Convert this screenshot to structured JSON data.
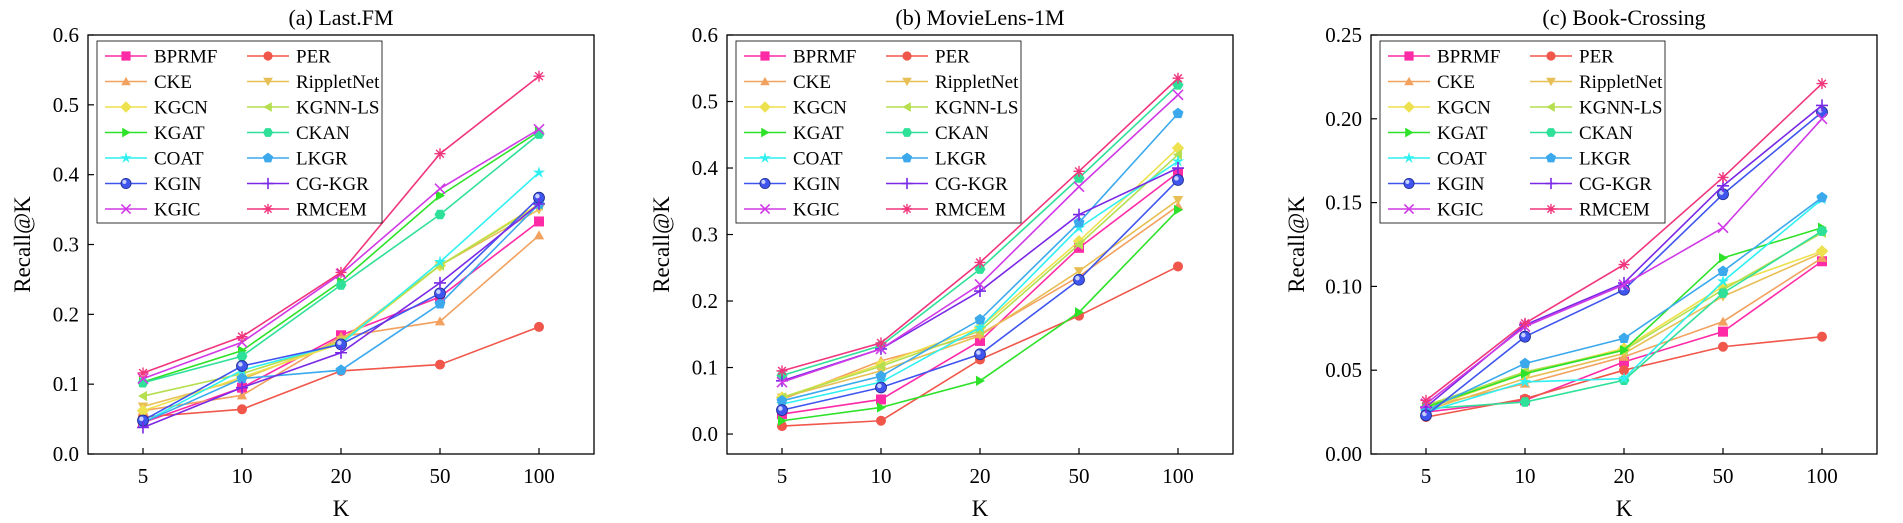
{
  "series_styles": [
    {
      "name": "BPRMF",
      "color": "#ff2aa6",
      "marker": "square"
    },
    {
      "name": "PER",
      "color": "#f0564a",
      "marker": "circle"
    },
    {
      "name": "CKE",
      "color": "#f2a15f",
      "marker": "triangle-up"
    },
    {
      "name": "RippletNet",
      "color": "#e8bf55",
      "marker": "triangle-down"
    },
    {
      "name": "KGCN",
      "color": "#eee14f",
      "marker": "diamond"
    },
    {
      "name": "KGNN-LS",
      "color": "#b5df4e",
      "marker": "triangle-left"
    },
    {
      "name": "KGAT",
      "color": "#2ee22a",
      "marker": "triangle-right"
    },
    {
      "name": "CKAN",
      "color": "#2fe099",
      "marker": "hexagon"
    },
    {
      "name": "COAT",
      "color": "#2ff0f0",
      "marker": "star"
    },
    {
      "name": "LKGR",
      "color": "#3ba9ec",
      "marker": "pentagon"
    },
    {
      "name": "KGIN",
      "color": "#3f55ee",
      "marker": "circle-lit"
    },
    {
      "name": "CG-KGR",
      "color": "#7a28e6",
      "marker": "plus"
    },
    {
      "name": "KGIC",
      "color": "#d03ae6",
      "marker": "x"
    },
    {
      "name": "RMCEM",
      "color": "#f0357d",
      "marker": "asterisk"
    }
  ],
  "chart_data": [
    {
      "type": "line",
      "title": "(a) Last.FM",
      "xlabel": "K",
      "ylabel": "Recall@K",
      "categories": [
        "5",
        "10",
        "20",
        "50",
        "100"
      ],
      "ylim": [
        0.0,
        0.6
      ],
      "yticks": [
        0.0,
        0.1,
        0.2,
        0.3,
        0.4,
        0.5,
        0.6
      ],
      "ytick_labels": [
        "0.0",
        "0.1",
        "0.2",
        "0.3",
        "0.4",
        "0.5",
        "0.6"
      ],
      "legend_position": "top-left",
      "series": [
        {
          "name": "BPRMF",
          "values": [
            0.045,
            0.095,
            0.17,
            0.225,
            0.333
          ]
        },
        {
          "name": "PER",
          "values": [
            0.053,
            0.064,
            0.119,
            0.128,
            0.182
          ]
        },
        {
          "name": "CKE",
          "values": [
            0.062,
            0.084,
            0.168,
            0.19,
            0.313
          ]
        },
        {
          "name": "RippletNet",
          "values": [
            0.068,
            0.107,
            0.163,
            0.27,
            0.35
          ]
        },
        {
          "name": "KGCN",
          "values": [
            0.062,
            0.11,
            0.158,
            0.27,
            0.358
          ]
        },
        {
          "name": "KGNN-LS",
          "values": [
            0.083,
            0.115,
            0.16,
            0.27,
            0.356
          ]
        },
        {
          "name": "KGAT",
          "values": [
            0.103,
            0.148,
            0.247,
            0.37,
            0.462
          ]
        },
        {
          "name": "CKAN",
          "values": [
            0.102,
            0.14,
            0.242,
            0.343,
            0.458
          ]
        },
        {
          "name": "COAT",
          "values": [
            0.045,
            0.12,
            0.158,
            0.275,
            0.403
          ]
        },
        {
          "name": "LKGR",
          "values": [
            0.045,
            0.108,
            0.12,
            0.215,
            0.358
          ]
        },
        {
          "name": "KGIN",
          "values": [
            0.048,
            0.126,
            0.157,
            0.23,
            0.367
          ]
        },
        {
          "name": "CG-KGR",
          "values": [
            0.038,
            0.095,
            0.145,
            0.245,
            0.358
          ]
        },
        {
          "name": "KGIC",
          "values": [
            0.108,
            0.16,
            0.258,
            0.38,
            0.465
          ]
        },
        {
          "name": "RMCEM",
          "values": [
            0.116,
            0.168,
            0.26,
            0.43,
            0.541
          ]
        }
      ]
    },
    {
      "type": "line",
      "title": "(b)  MovieLens-1M",
      "xlabel": "K",
      "ylabel": "Recall@K",
      "categories": [
        "5",
        "10",
        "20",
        "50",
        "100"
      ],
      "ylim": [
        -0.03,
        0.6
      ],
      "yticks": [
        0.0,
        0.1,
        0.2,
        0.3,
        0.4,
        0.5,
        0.6
      ],
      "ytick_labels": [
        "0.0",
        "0.1",
        "0.2",
        "0.3",
        "0.4",
        "0.5",
        "0.6"
      ],
      "legend_position": "top-left",
      "series": [
        {
          "name": "BPRMF",
          "values": [
            0.03,
            0.052,
            0.14,
            0.28,
            0.393
          ]
        },
        {
          "name": "PER",
          "values": [
            0.012,
            0.02,
            0.112,
            0.178,
            0.252
          ]
        },
        {
          "name": "CKE",
          "values": [
            0.052,
            0.11,
            0.15,
            0.237,
            0.343
          ]
        },
        {
          "name": "RippletNet",
          "values": [
            0.055,
            0.095,
            0.148,
            0.245,
            0.352
          ]
        },
        {
          "name": "KGCN",
          "values": [
            0.055,
            0.105,
            0.16,
            0.29,
            0.43
          ]
        },
        {
          "name": "KGNN-LS",
          "values": [
            0.055,
            0.102,
            0.155,
            0.285,
            0.42
          ]
        },
        {
          "name": "KGAT",
          "values": [
            0.02,
            0.04,
            0.08,
            0.183,
            0.337
          ]
        },
        {
          "name": "CKAN",
          "values": [
            0.088,
            0.133,
            0.248,
            0.385,
            0.525
          ]
        },
        {
          "name": "COAT",
          "values": [
            0.045,
            0.078,
            0.16,
            0.31,
            0.41
          ]
        },
        {
          "name": "LKGR",
          "values": [
            0.05,
            0.087,
            0.172,
            0.318,
            0.482
          ]
        },
        {
          "name": "KGIN",
          "values": [
            0.036,
            0.07,
            0.12,
            0.232,
            0.382
          ]
        },
        {
          "name": "CG-KGR",
          "values": [
            0.08,
            0.128,
            0.215,
            0.33,
            0.4
          ]
        },
        {
          "name": "KGIC",
          "values": [
            0.078,
            0.128,
            0.225,
            0.372,
            0.51
          ]
        },
        {
          "name": "RMCEM",
          "values": [
            0.095,
            0.137,
            0.258,
            0.395,
            0.535
          ]
        }
      ]
    },
    {
      "type": "line",
      "title": "(c) Book-Crossing",
      "xlabel": "K",
      "ylabel": "Recall@K",
      "categories": [
        "5",
        "10",
        "20",
        "50",
        "100"
      ],
      "ylim": [
        0.0,
        0.25
      ],
      "yticks": [
        0.0,
        0.05,
        0.1,
        0.15,
        0.2,
        0.25
      ],
      "ytick_labels": [
        "0.00",
        "0.05",
        "0.10",
        "0.15",
        "0.20",
        "0.25"
      ],
      "legend_position": "top-left",
      "series": [
        {
          "name": "BPRMF",
          "values": [
            0.025,
            0.032,
            0.055,
            0.073,
            0.115
          ]
        },
        {
          "name": "PER",
          "values": [
            0.022,
            0.033,
            0.05,
            0.064,
            0.07
          ]
        },
        {
          "name": "CKE",
          "values": [
            0.028,
            0.042,
            0.058,
            0.079,
            0.117
          ]
        },
        {
          "name": "RippletNet",
          "values": [
            0.026,
            0.045,
            0.06,
            0.094,
            0.12
          ]
        },
        {
          "name": "KGCN",
          "values": [
            0.027,
            0.048,
            0.063,
            0.1,
            0.121
          ]
        },
        {
          "name": "KGNN-LS",
          "values": [
            0.029,
            0.049,
            0.062,
            0.098,
            0.132
          ]
        },
        {
          "name": "KGAT",
          "values": [
            0.028,
            0.048,
            0.062,
            0.117,
            0.135
          ]
        },
        {
          "name": "CKAN",
          "values": [
            0.027,
            0.031,
            0.044,
            0.096,
            0.133
          ]
        },
        {
          "name": "COAT",
          "values": [
            0.025,
            0.043,
            0.045,
            0.103,
            0.152
          ]
        },
        {
          "name": "LKGR",
          "values": [
            0.026,
            0.054,
            0.069,
            0.109,
            0.153
          ]
        },
        {
          "name": "KGIN",
          "values": [
            0.023,
            0.07,
            0.098,
            0.155,
            0.204
          ]
        },
        {
          "name": "CG-KGR",
          "values": [
            0.028,
            0.077,
            0.102,
            0.16,
            0.208
          ]
        },
        {
          "name": "KGIC",
          "values": [
            0.03,
            0.076,
            0.101,
            0.135,
            0.2
          ]
        },
        {
          "name": "RMCEM",
          "values": [
            0.032,
            0.078,
            0.113,
            0.165,
            0.221
          ]
        }
      ]
    }
  ]
}
